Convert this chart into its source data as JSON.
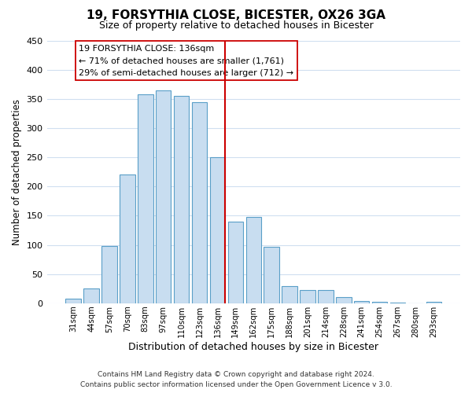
{
  "title": "19, FORSYTHIA CLOSE, BICESTER, OX26 3GA",
  "subtitle": "Size of property relative to detached houses in Bicester",
  "xlabel": "Distribution of detached houses by size in Bicester",
  "ylabel": "Number of detached properties",
  "bar_labels": [
    "31sqm",
    "44sqm",
    "57sqm",
    "70sqm",
    "83sqm",
    "97sqm",
    "110sqm",
    "123sqm",
    "136sqm",
    "149sqm",
    "162sqm",
    "175sqm",
    "188sqm",
    "201sqm",
    "214sqm",
    "228sqm",
    "241sqm",
    "254sqm",
    "267sqm",
    "280sqm",
    "293sqm"
  ],
  "bar_values": [
    8,
    25,
    98,
    220,
    358,
    365,
    355,
    345,
    250,
    140,
    148,
    97,
    30,
    22,
    22,
    11,
    4,
    2,
    1,
    0,
    2
  ],
  "bar_color": "#c8ddf0",
  "bar_edge_color": "#5a9fc8",
  "highlight_index": 8,
  "highlight_line_color": "#cc0000",
  "ylim": [
    0,
    450
  ],
  "yticks": [
    0,
    50,
    100,
    150,
    200,
    250,
    300,
    350,
    400,
    450
  ],
  "annotation_title": "19 FORSYTHIA CLOSE: 136sqm",
  "annotation_line1": "← 71% of detached houses are smaller (1,761)",
  "annotation_line2": "29% of semi-detached houses are larger (712) →",
  "footer_line1": "Contains HM Land Registry data © Crown copyright and database right 2024.",
  "footer_line2": "Contains public sector information licensed under the Open Government Licence v 3.0.",
  "background_color": "#ffffff",
  "grid_color": "#d0dff0"
}
